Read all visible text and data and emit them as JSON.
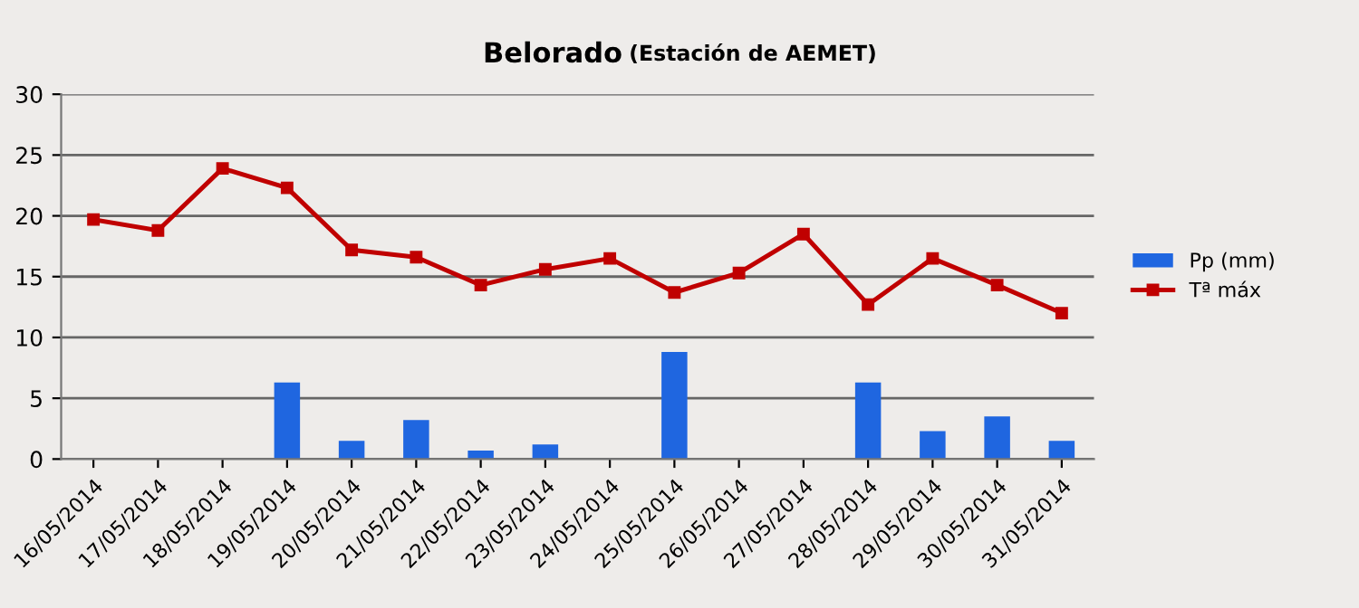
{
  "chart_data": {
    "type": "bar",
    "title": "Belorado",
    "subtitle": "(Estación de AEMET)",
    "categories": [
      "16/05/2014",
      "17/05/2014",
      "18/05/2014",
      "19/05/2014",
      "20/05/2014",
      "21/05/2014",
      "22/05/2014",
      "23/05/2014",
      "24/05/2014",
      "25/05/2014",
      "26/05/2014",
      "27/05/2014",
      "28/05/2014",
      "29/05/2014",
      "30/05/2014",
      "31/05/2014"
    ],
    "series": [
      {
        "name": "Pp (mm)",
        "color": "#1f66e0",
        "values": [
          0,
          0,
          0,
          6.3,
          1.5,
          3.2,
          0.7,
          1.2,
          0,
          8.8,
          0,
          0,
          6.3,
          2.3,
          3.5,
          1.5
        ]
      },
      {
        "name": "Tª máx",
        "type": "line",
        "color": "#c00000",
        "marker": "square",
        "line_style": "solid",
        "values": [
          19.7,
          18.8,
          23.9,
          22.3,
          17.2,
          16.6,
          14.3,
          15.6,
          16.5,
          13.7,
          15.3,
          18.5,
          12.7,
          16.5,
          14.3,
          12.0
        ]
      }
    ],
    "ylim": [
      0,
      30
    ],
    "yticks": [
      0,
      5,
      10,
      15,
      20,
      25,
      30
    ],
    "grid": "y",
    "legend": "right"
  }
}
